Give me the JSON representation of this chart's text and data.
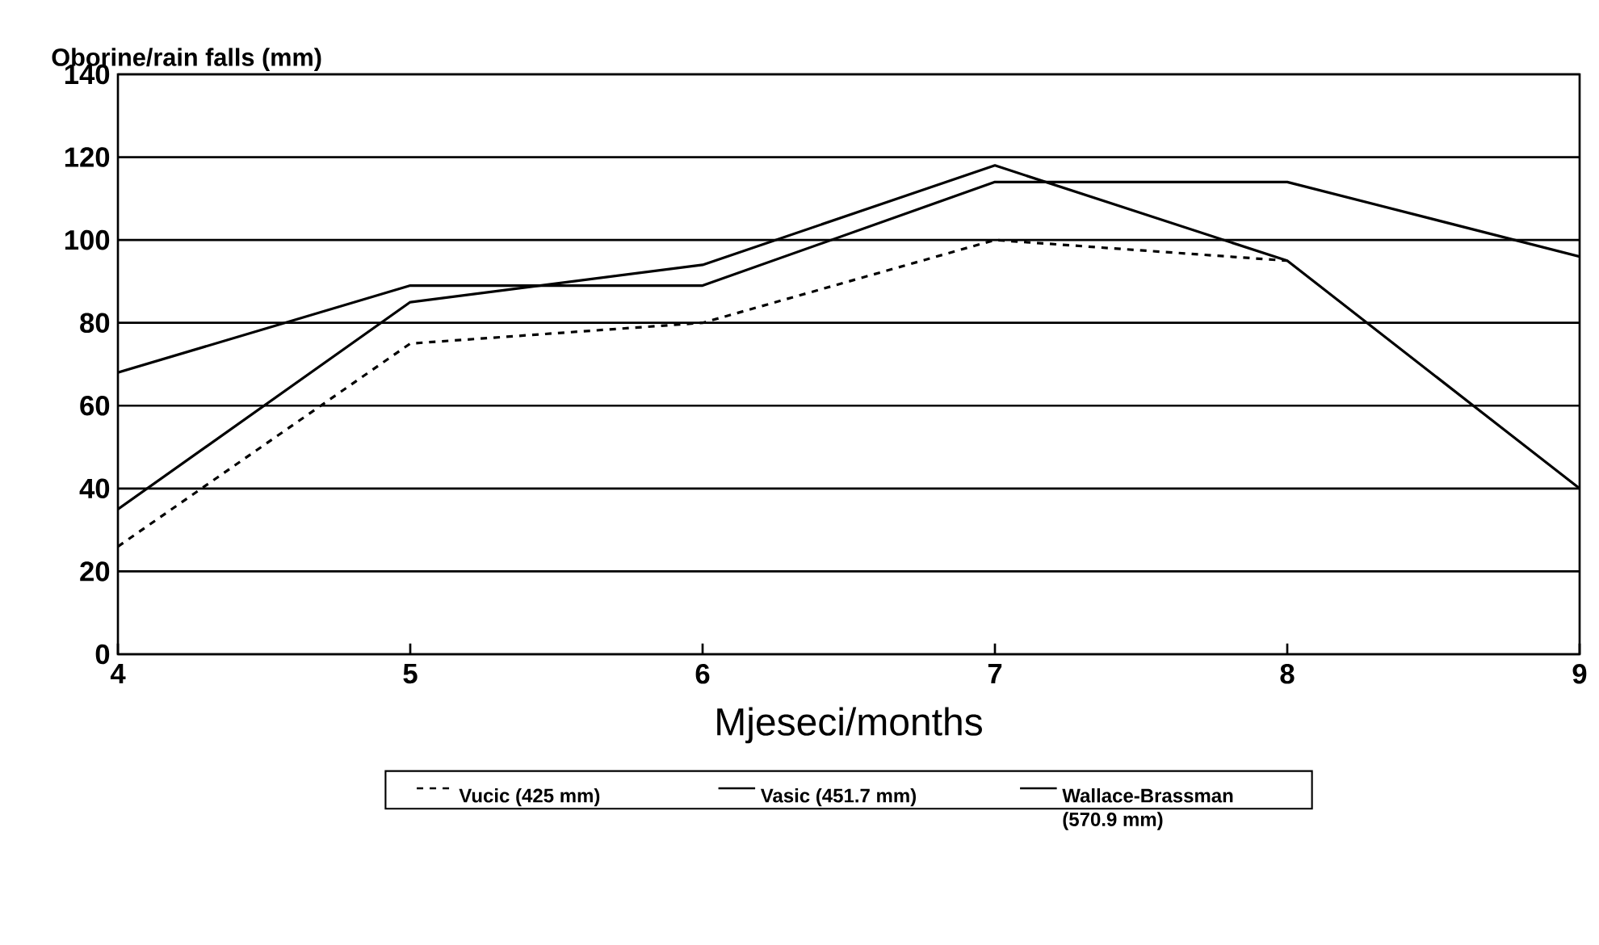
{
  "chart_data": {
    "type": "line",
    "ylabel": "Oborine/rain falls (mm)",
    "xlabel": "Mjeseci/months",
    "x": [
      4,
      5,
      6,
      7,
      8,
      9
    ],
    "series": [
      {
        "name": "Vucic (425 mm)",
        "color": "#000000",
        "line_style": "dashed",
        "x": [
          4,
          5,
          6,
          7,
          8
        ],
        "values": [
          26,
          75,
          80,
          100,
          95
        ]
      },
      {
        "name": "Vasic (451.7 mm)",
        "color": "#000000",
        "line_style": "solid",
        "values": [
          68,
          89,
          89,
          114,
          114,
          96
        ]
      },
      {
        "name": "Wallace-Brassman (570.9 mm)",
        "color": "#000000",
        "line_style": "solid",
        "values": [
          35,
          85,
          94,
          118,
          95,
          40
        ]
      }
    ],
    "xlim": [
      4,
      9
    ],
    "xticks": [
      4,
      5,
      6,
      7,
      8,
      9
    ],
    "ylim": [
      0,
      140
    ],
    "yticks": [
      0,
      20,
      40,
      60,
      80,
      100,
      120,
      140
    ],
    "grid": "y",
    "legend": "bottom",
    "marker": "none"
  }
}
